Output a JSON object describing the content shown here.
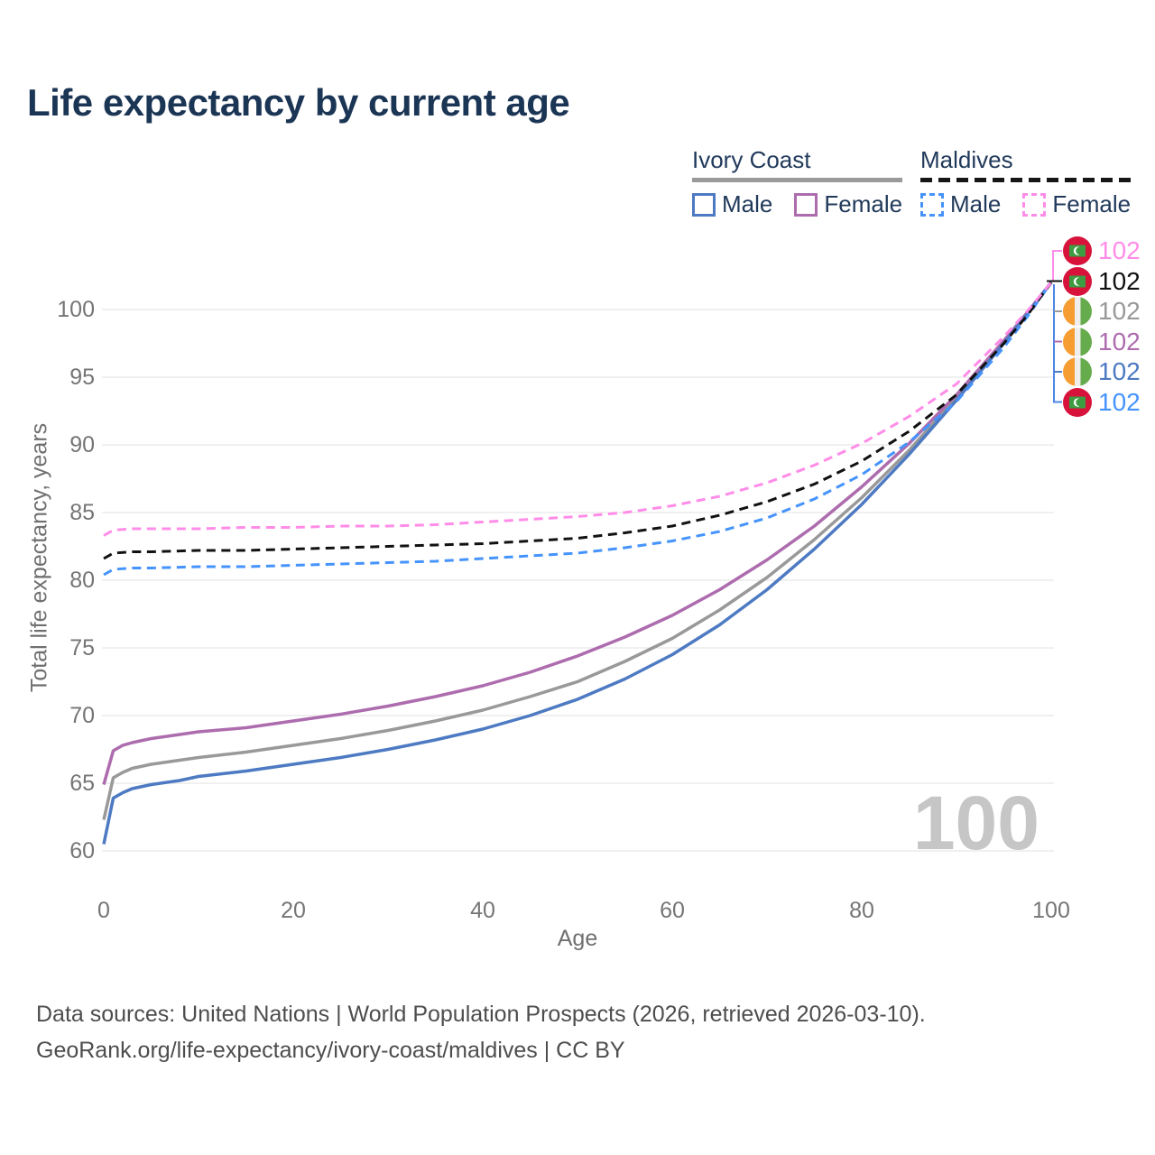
{
  "title": "Life expectancy by current age",
  "legend": {
    "groups": [
      {
        "label": "Ivory Coast",
        "line_style": "solid",
        "underline_color": "#9a9a9a",
        "items": [
          {
            "label": "Male",
            "color": "#4d7ac2",
            "dashed": false
          },
          {
            "label": "Female",
            "color": "#ad6cae",
            "dashed": false
          }
        ]
      },
      {
        "label": "Maldives",
        "line_style": "dashed",
        "underline_color": "#161616",
        "items": [
          {
            "label": "Male",
            "color": "#4593fc",
            "dashed": true
          },
          {
            "label": "Female",
            "color": "#ff8ce8",
            "dashed": true
          }
        ]
      }
    ]
  },
  "watermark": "100",
  "footer": {
    "line1": "Data sources: United Nations | World Population Prospects (2026, retrieved 2026-03-10).",
    "line2": "GeoRank.org/life-expectancy/ivory-coast/maldives | CC BY"
  },
  "end_labels": [
    {
      "value": "102",
      "series": "Maldives — Female",
      "flag": "maldives",
      "color": "#ff8ce8"
    },
    {
      "value": "102",
      "series": "Maldives — All",
      "flag": "maldives",
      "color": "#111111"
    },
    {
      "value": "102",
      "series": "Ivory Coast — All",
      "flag": "ivory-coast",
      "color": "#999999"
    },
    {
      "value": "102",
      "series": "Ivory Coast — Female",
      "flag": "ivory-coast",
      "color": "#ad6cae"
    },
    {
      "value": "102",
      "series": "Ivory Coast — Male",
      "flag": "ivory-coast",
      "color": "#4d7ac2"
    },
    {
      "value": "102",
      "series": "Maldives — Male",
      "flag": "maldives",
      "color": "#4593fc"
    }
  ],
  "chart_data": {
    "type": "line",
    "title": "Life expectancy by current age",
    "xlabel": "Age",
    "ylabel": "Total life expectancy, years",
    "xlim": [
      0,
      100
    ],
    "ylim": [
      60,
      103.5
    ],
    "x_ticks": [
      0,
      20,
      40,
      60,
      80,
      100
    ],
    "y_ticks": [
      60,
      65,
      70,
      75,
      80,
      85,
      90,
      95,
      100
    ],
    "grid": "horizontal",
    "legend_position": "top-right",
    "gridline_color": "#ececec",
    "tick_color": "#757575",
    "series": [
      {
        "name": "Ivory Coast — All",
        "country": "Ivory Coast",
        "sex": "all",
        "color": "#999999",
        "dashed": false,
        "points": [
          [
            0,
            62.3
          ],
          [
            1,
            65.4
          ],
          [
            2,
            65.8
          ],
          [
            3,
            66.1
          ],
          [
            5,
            66.4
          ],
          [
            8,
            66.7
          ],
          [
            10,
            66.9
          ],
          [
            15,
            67.3
          ],
          [
            20,
            67.8
          ],
          [
            25,
            68.3
          ],
          [
            30,
            68.9
          ],
          [
            35,
            69.6
          ],
          [
            40,
            70.4
          ],
          [
            45,
            71.4
          ],
          [
            50,
            72.5
          ],
          [
            55,
            74.0
          ],
          [
            60,
            75.7
          ],
          [
            65,
            77.8
          ],
          [
            70,
            80.2
          ],
          [
            75,
            83.0
          ],
          [
            80,
            86.1
          ],
          [
            85,
            89.6
          ],
          [
            90,
            93.5
          ],
          [
            95,
            97.6
          ],
          [
            97.5,
            99.8
          ],
          [
            100,
            102
          ]
        ]
      },
      {
        "name": "Ivory Coast — Female",
        "country": "Ivory Coast",
        "sex": "female",
        "color": "#ad6cae",
        "dashed": false,
        "points": [
          [
            0,
            64.9
          ],
          [
            1,
            67.4
          ],
          [
            2,
            67.8
          ],
          [
            3,
            68.0
          ],
          [
            5,
            68.3
          ],
          [
            8,
            68.6
          ],
          [
            10,
            68.8
          ],
          [
            15,
            69.1
          ],
          [
            20,
            69.6
          ],
          [
            25,
            70.1
          ],
          [
            30,
            70.7
          ],
          [
            35,
            71.4
          ],
          [
            40,
            72.2
          ],
          [
            45,
            73.2
          ],
          [
            50,
            74.4
          ],
          [
            55,
            75.8
          ],
          [
            60,
            77.4
          ],
          [
            65,
            79.3
          ],
          [
            70,
            81.5
          ],
          [
            75,
            84.0
          ],
          [
            80,
            86.9
          ],
          [
            85,
            90.1
          ],
          [
            90,
            93.7
          ],
          [
            95,
            97.7
          ],
          [
            97.5,
            99.8
          ],
          [
            100,
            102
          ]
        ]
      },
      {
        "name": "Ivory Coast — Male",
        "country": "Ivory Coast",
        "sex": "male",
        "color": "#4d7ac2",
        "dashed": false,
        "points": [
          [
            0,
            60.5
          ],
          [
            1,
            63.9
          ],
          [
            2,
            64.3
          ],
          [
            3,
            64.6
          ],
          [
            5,
            64.9
          ],
          [
            8,
            65.2
          ],
          [
            10,
            65.5
          ],
          [
            15,
            65.9
          ],
          [
            20,
            66.4
          ],
          [
            25,
            66.9
          ],
          [
            30,
            67.5
          ],
          [
            35,
            68.2
          ],
          [
            40,
            69.0
          ],
          [
            45,
            70.0
          ],
          [
            50,
            71.2
          ],
          [
            55,
            72.7
          ],
          [
            60,
            74.5
          ],
          [
            65,
            76.7
          ],
          [
            70,
            79.3
          ],
          [
            75,
            82.3
          ],
          [
            80,
            85.6
          ],
          [
            85,
            89.3
          ],
          [
            90,
            93.3
          ],
          [
            95,
            97.5
          ],
          [
            97.5,
            99.7
          ],
          [
            100,
            102
          ]
        ]
      },
      {
        "name": "Maldives — Male",
        "country": "Maldives",
        "sex": "male",
        "color": "#4593fc",
        "dashed": true,
        "points": [
          [
            0,
            80.4
          ],
          [
            1,
            80.8
          ],
          [
            3,
            80.9
          ],
          [
            5,
            80.9
          ],
          [
            10,
            81.0
          ],
          [
            15,
            81.0
          ],
          [
            20,
            81.1
          ],
          [
            25,
            81.2
          ],
          [
            30,
            81.3
          ],
          [
            35,
            81.4
          ],
          [
            40,
            81.6
          ],
          [
            45,
            81.8
          ],
          [
            50,
            82.0
          ],
          [
            55,
            82.4
          ],
          [
            60,
            82.9
          ],
          [
            65,
            83.6
          ],
          [
            70,
            84.6
          ],
          [
            75,
            86.0
          ],
          [
            80,
            87.8
          ],
          [
            85,
            90.2
          ],
          [
            90,
            93.2
          ],
          [
            95,
            97.2
          ],
          [
            97.5,
            99.5
          ],
          [
            100,
            102
          ]
        ]
      },
      {
        "name": "Maldives — All",
        "country": "Maldives",
        "sex": "all",
        "color": "#111111",
        "dashed": true,
        "points": [
          [
            0,
            81.6
          ],
          [
            1,
            82.0
          ],
          [
            3,
            82.1
          ],
          [
            5,
            82.1
          ],
          [
            10,
            82.2
          ],
          [
            15,
            82.2
          ],
          [
            20,
            82.3
          ],
          [
            25,
            82.4
          ],
          [
            30,
            82.5
          ],
          [
            35,
            82.6
          ],
          [
            40,
            82.7
          ],
          [
            45,
            82.9
          ],
          [
            50,
            83.1
          ],
          [
            55,
            83.5
          ],
          [
            60,
            84.0
          ],
          [
            65,
            84.8
          ],
          [
            70,
            85.8
          ],
          [
            75,
            87.1
          ],
          [
            80,
            88.8
          ],
          [
            85,
            91.0
          ],
          [
            90,
            93.7
          ],
          [
            95,
            97.5
          ],
          [
            97.5,
            99.6
          ],
          [
            100,
            102
          ]
        ]
      },
      {
        "name": "Maldives — Female",
        "country": "Maldives",
        "sex": "female",
        "color": "#ff8ce8",
        "dashed": true,
        "points": [
          [
            0,
            83.3
          ],
          [
            1,
            83.7
          ],
          [
            3,
            83.8
          ],
          [
            5,
            83.8
          ],
          [
            10,
            83.8
          ],
          [
            15,
            83.9
          ],
          [
            20,
            83.9
          ],
          [
            25,
            84.0
          ],
          [
            30,
            84.0
          ],
          [
            35,
            84.1
          ],
          [
            40,
            84.3
          ],
          [
            45,
            84.5
          ],
          [
            50,
            84.7
          ],
          [
            55,
            85.0
          ],
          [
            60,
            85.5
          ],
          [
            65,
            86.2
          ],
          [
            70,
            87.2
          ],
          [
            75,
            88.5
          ],
          [
            80,
            90.1
          ],
          [
            85,
            92.1
          ],
          [
            90,
            94.5
          ],
          [
            95,
            98.0
          ],
          [
            97.5,
            99.9
          ],
          [
            100,
            102
          ]
        ]
      }
    ]
  }
}
